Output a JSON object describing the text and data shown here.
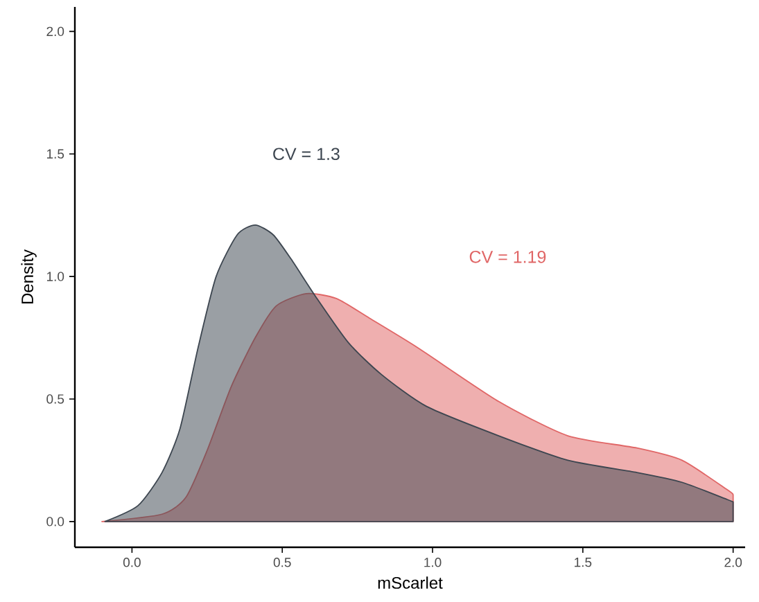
{
  "chart_data": {
    "type": "area",
    "xlabel": "mScarlet",
    "ylabel": "Density",
    "xlim": [
      -0.19,
      2.04
    ],
    "ylim": [
      -0.105,
      2.1
    ],
    "xticks": [
      {
        "value": 0,
        "label": "0.0"
      },
      {
        "value": 0.5,
        "label": "0.5"
      },
      {
        "value": 1,
        "label": "1.0"
      },
      {
        "value": 1.5,
        "label": "1.5"
      },
      {
        "value": 2,
        "label": "2.0"
      }
    ],
    "yticks": [
      {
        "value": 0,
        "label": "0.0"
      },
      {
        "value": 0.5,
        "label": "0.5"
      },
      {
        "value": 1,
        "label": "1.0"
      },
      {
        "value": 1.5,
        "label": "1.5"
      },
      {
        "value": 2,
        "label": "2.0"
      }
    ],
    "series": [
      {
        "name": "CV = 1.19",
        "color": "#e06666",
        "x": [
          -0.1,
          0.1,
          0.18,
          0.25,
          0.33,
          0.41,
          0.48,
          0.58,
          0.68,
          0.79,
          0.95,
          1.22,
          1.45,
          1.68,
          1.83,
          1.98,
          2.0
        ],
        "values": [
          0,
          0.03,
          0.1,
          0.29,
          0.55,
          0.75,
          0.88,
          0.93,
          0.91,
          0.83,
          0.71,
          0.49,
          0.35,
          0.3,
          0.25,
          0.13,
          0.11
        ]
      },
      {
        "name": "CV = 1.3",
        "color": "#3d4650",
        "x": [
          -0.09,
          0.02,
          0.1,
          0.16,
          0.22,
          0.28,
          0.35,
          0.41,
          0.47,
          0.53,
          0.61,
          0.72,
          0.83,
          0.98,
          1.22,
          1.45,
          1.68,
          1.83,
          1.98,
          2.0
        ],
        "values": [
          0,
          0.065,
          0.2,
          0.38,
          0.71,
          1.0,
          1.17,
          1.21,
          1.17,
          1.07,
          0.92,
          0.73,
          0.6,
          0.47,
          0.35,
          0.25,
          0.2,
          0.16,
          0.09,
          0.08
        ]
      }
    ]
  }
}
